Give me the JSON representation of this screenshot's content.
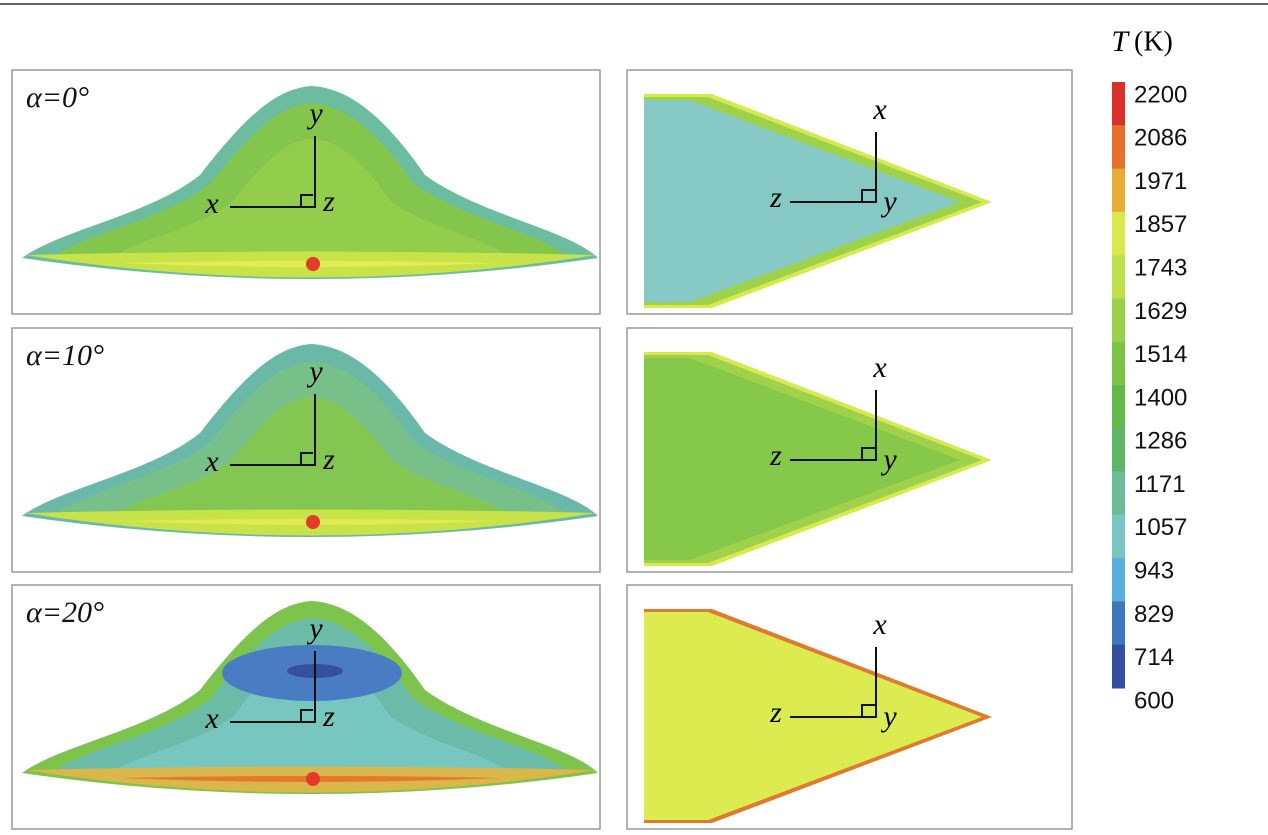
{
  "colorbar": {
    "title_symbol": "T",
    "title_unit": "(K)",
    "labels": [
      2200,
      2086,
      1971,
      1857,
      1743,
      1629,
      1514,
      1400,
      1286,
      1171,
      1057,
      943,
      829,
      714,
      600
    ],
    "colors": [
      "#d9302a",
      "#e6702c",
      "#e6ad35",
      "#d9e94c",
      "#c0e04a",
      "#9bd148",
      "#7cc446",
      "#62b94a",
      "#5db566",
      "#6cbc98",
      "#7ac6c4",
      "#5aaede",
      "#3d78bc",
      "#33509e"
    ]
  },
  "panels": [
    {
      "label": "α=0°",
      "front_axes": {
        "horizontal": "x",
        "vertical": "y",
        "normal": "z"
      },
      "top_axes": {
        "vertical": "x",
        "horizontal": "z",
        "normal": "y"
      }
    },
    {
      "label": "α=10°",
      "front_axes": {
        "horizontal": "x",
        "vertical": "y",
        "normal": "z"
      },
      "top_axes": {
        "vertical": "x",
        "horizontal": "z",
        "normal": "y"
      }
    },
    {
      "label": "α=20°",
      "front_axes": {
        "horizontal": "x",
        "vertical": "y",
        "normal": "z"
      },
      "top_axes": {
        "vertical": "x",
        "horizontal": "z",
        "normal": "y"
      }
    }
  ]
}
